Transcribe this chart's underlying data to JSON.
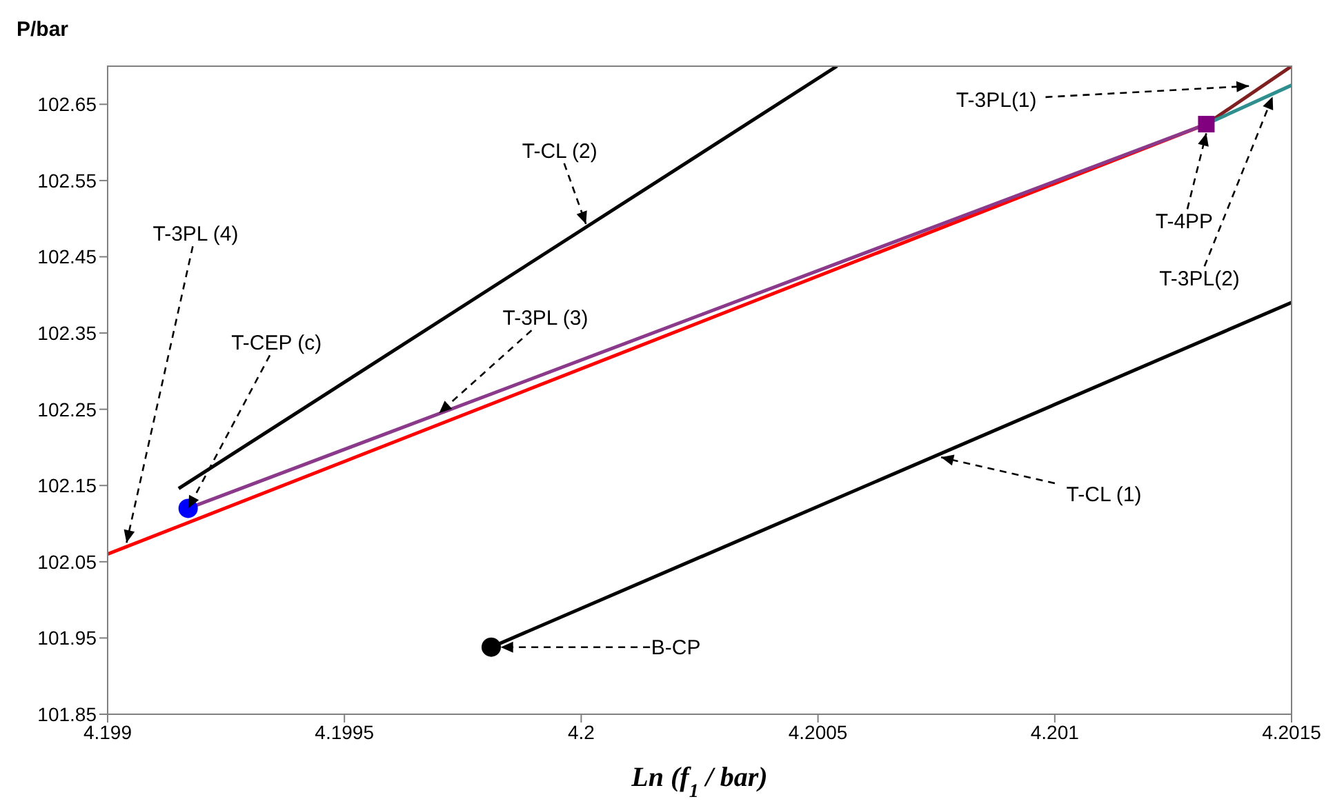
{
  "chart_data": {
    "type": "line",
    "xlabel": "Ln (f$_{1}$ / bar)",
    "ylabel": "P/bar",
    "xlim": [
      4.199,
      4.2015
    ],
    "xticks": [
      4.199,
      4.1995,
      4.2,
      4.2005,
      4.201,
      4.2015
    ],
    "ylim": [
      101.85,
      102.7
    ],
    "yticks": [
      101.85,
      101.95,
      102.05,
      102.15,
      102.25,
      102.35,
      102.45,
      102.55,
      102.65
    ],
    "grid": false,
    "legend": false,
    "marker": "none",
    "line_style": "solid",
    "series": [
      {
        "type": "line",
        "color": "#ff0000",
        "x": [
          4.199,
          4.20132
        ],
        "values": [
          102.06,
          102.624
        ]
      },
      {
        "type": "line",
        "color": "#8b3a8b",
        "x": [
          4.19917,
          4.20132
        ],
        "values": [
          102.12,
          102.624
        ]
      },
      {
        "type": "line",
        "color": "#7f1f1f",
        "x": [
          4.20132,
          4.2015
        ],
        "values": [
          102.624,
          102.7
        ]
      },
      {
        "type": "line",
        "color": "#2f8f8f",
        "x": [
          4.20132,
          4.2015
        ],
        "values": [
          102.624,
          102.675
        ]
      },
      {
        "type": "line",
        "color": "#000000",
        "x": [
          4.19915,
          4.20054
        ],
        "values": [
          102.146,
          102.7
        ]
      },
      {
        "type": "line",
        "color": "#000000",
        "x": [
          4.19981,
          4.2015
        ],
        "values": [
          101.938,
          102.39
        ]
      },
      {
        "type": "scatter",
        "color": "#0000ff",
        "marker": "circle",
        "x": [
          4.19917
        ],
        "values": [
          102.12
        ]
      },
      {
        "type": "scatter",
        "color": "#000000",
        "marker": "circle",
        "x": [
          4.19981
        ],
        "values": [
          101.938
        ]
      },
      {
        "type": "scatter",
        "color": "#800080",
        "marker": "square",
        "x": [
          4.20132
        ],
        "values": [
          102.624
        ]
      }
    ],
    "annotations": [
      {
        "text": "T-3PL (4)",
        "x": 4.19904,
        "y": 102.075
      },
      {
        "text": "T-CL (2)",
        "x": 4.20001,
        "y": 102.493
      },
      {
        "text": "T-CEP (c)",
        "x": 4.19917,
        "y": 102.12
      },
      {
        "text": "T-3PL (3)",
        "x": 4.1997,
        "y": 102.245
      },
      {
        "text": "B-CP",
        "x": 4.19983,
        "y": 101.938
      },
      {
        "text": "T-CL (1)",
        "x": 4.20076,
        "y": 102.187
      },
      {
        "text": "T-3PL(1)",
        "x": 4.20141,
        "y": 102.674
      },
      {
        "text": "T-4PP",
        "x": 4.20132,
        "y": 102.612
      },
      {
        "text": "T-3PL(2)",
        "x": 4.20146,
        "y": 102.66
      }
    ]
  }
}
